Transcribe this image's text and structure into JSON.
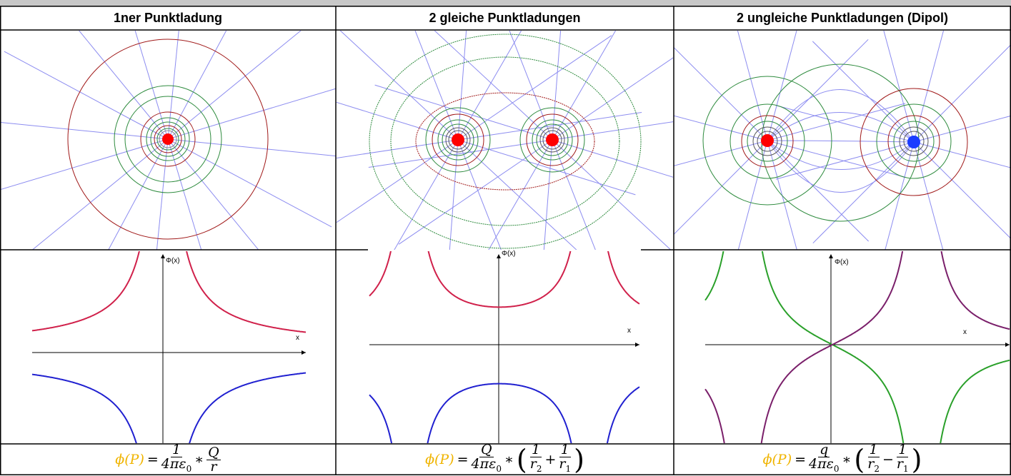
{
  "headers": [
    "1ner Punktladung",
    "2 gleiche Punktladungen",
    "2 ungleiche Punktladungen (Dipol)"
  ],
  "graphs": [
    {
      "y_label": "Φ(x)",
      "x_label": "x"
    },
    {
      "y_label": "Φ(x)",
      "x_label": "x"
    },
    {
      "y_label": "Φ(x)",
      "x_label": "x"
    }
  ],
  "formulas": [
    [
      {
        "text": "ϕ(P)"
      },
      {
        "text": "="
      },
      {
        "num": "1",
        "den": "4πε",
        "den_sub": "0"
      },
      {
        "text": "∗"
      },
      {
        "num": "Q",
        "den": "r"
      }
    ],
    [
      {
        "text": "ϕ(P)"
      },
      {
        "text": "="
      },
      {
        "num": "Q",
        "den": "4πε",
        "den_sub": "0"
      },
      {
        "text": "∗"
      },
      {
        "text": "("
      },
      {
        "num": "1",
        "den": "r",
        "den_sub": "2"
      },
      {
        "text": "+"
      },
      {
        "num": "1",
        "den": "r",
        "den_sub": "1"
      },
      {
        "text": ")"
      }
    ],
    [
      {
        "text": "ϕ(P)"
      },
      {
        "text": "="
      },
      {
        "num": "q",
        "den": "4πε",
        "den_sub": "0"
      },
      {
        "text": "∗"
      },
      {
        "text": "("
      },
      {
        "num": "1",
        "den": "r",
        "den_sub": "2"
      },
      {
        "text": "−"
      },
      {
        "num": "1",
        "den": "r",
        "den_sub": "1"
      },
      {
        "text": ")"
      }
    ]
  ]
}
